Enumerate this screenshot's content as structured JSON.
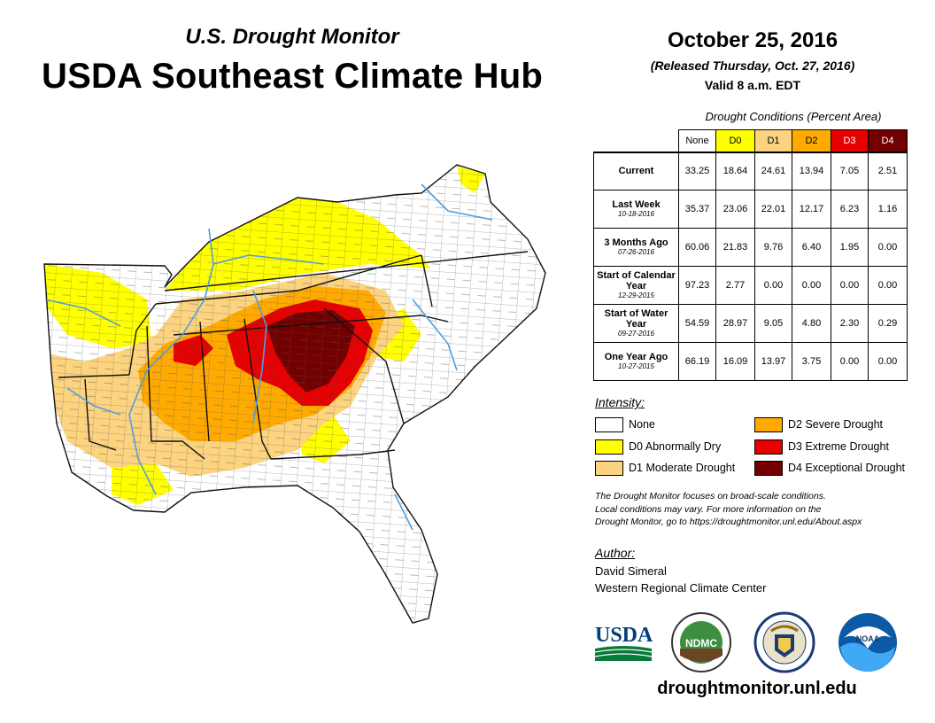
{
  "header": {
    "subtitle": "U.S. Drought Monitor",
    "title": "USDA Southeast Climate Hub",
    "date": "October 25, 2016",
    "released": "(Released Thursday, Oct. 27, 2016)",
    "valid": "Valid 8 a.m. EDT"
  },
  "conditions": {
    "caption": "Drought Conditions (Percent Area)",
    "columns": [
      "None",
      "D0",
      "D1",
      "D2",
      "D3",
      "D4"
    ],
    "rows": [
      {
        "label": "Current",
        "date": "",
        "values": [
          "33.25",
          "18.64",
          "24.61",
          "13.94",
          "7.05",
          "2.51"
        ]
      },
      {
        "label": "Last Week",
        "date": "10-18-2016",
        "values": [
          "35.37",
          "23.06",
          "22.01",
          "12.17",
          "6.23",
          "1.16"
        ]
      },
      {
        "label": "3 Months Ago",
        "date": "07-26-2016",
        "values": [
          "60.06",
          "21.83",
          "9.76",
          "6.40",
          "1.95",
          "0.00"
        ]
      },
      {
        "label": "Start of Calendar Year",
        "date": "12-29-2015",
        "values": [
          "97.23",
          "2.77",
          "0.00",
          "0.00",
          "0.00",
          "0.00"
        ]
      },
      {
        "label": "Start of Water Year",
        "date": "09-27-2016",
        "values": [
          "54.59",
          "28.97",
          "9.05",
          "4.80",
          "2.30",
          "0.29"
        ]
      },
      {
        "label": "One Year Ago",
        "date": "10-27-2015",
        "values": [
          "66.19",
          "16.09",
          "13.97",
          "3.75",
          "0.00",
          "0.00"
        ]
      }
    ]
  },
  "legend": {
    "title": "Intensity:",
    "items": [
      {
        "label": "None",
        "color": "#ffffff"
      },
      {
        "label": "D0 Abnormally Dry",
        "color": "#ffff00"
      },
      {
        "label": "D1 Moderate Drought",
        "color": "#fcd37f"
      },
      {
        "label": "D2 Severe Drought",
        "color": "#ffaa00"
      },
      {
        "label": "D3 Extreme Drought",
        "color": "#e60000"
      },
      {
        "label": "D4 Exceptional Drought",
        "color": "#730000"
      }
    ]
  },
  "note": {
    "line1": "The Drought Monitor focuses on broad-scale conditions.",
    "line2": "Local conditions may vary. For more information on the",
    "line3": "Drought Monitor, go to https://droughtmonitor.unl.edu/About.aspx"
  },
  "author": {
    "title": "Author:",
    "name": "David Simeral",
    "org": "Western Regional Climate Center"
  },
  "logos": {
    "usda": "USDA",
    "ndmc": "NDMC",
    "noaa": "NOAA"
  },
  "footer": {
    "url": "droughtmonitor.unl.edu"
  },
  "colors": {
    "none": "#ffffff",
    "d0": "#ffff00",
    "d1": "#fcd37f",
    "d2": "#ffaa00",
    "d3": "#e60000",
    "d4": "#730000",
    "water": "#4f9fe0"
  }
}
